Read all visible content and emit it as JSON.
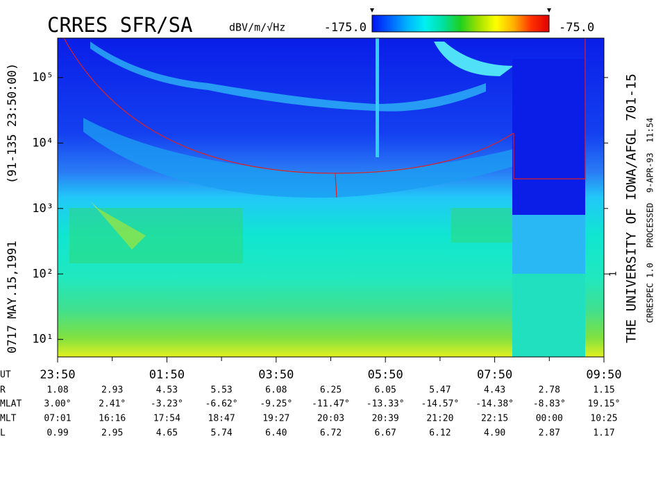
{
  "chart_data": {
    "type": "spectrogram",
    "title": "CRRES SFR/SA",
    "colorbar": {
      "unit": "dBV/m/√Hz",
      "zlim": [
        -175,
        -75
      ],
      "zticks": [
        {
          "value": -175,
          "label": "-175.0"
        },
        {
          "value": -75,
          "label": "-75.0"
        }
      ],
      "colorscale": [
        "#0014f0",
        "#0060ff",
        "#00b4ff",
        "#00f0f0",
        "#00e0a0",
        "#20d020",
        "#a0e000",
        "#ffff00",
        "#ffb000",
        "#ff3000",
        "#e00000"
      ]
    },
    "ylog": true,
    "ylim": [
      5.4,
      400000
    ],
    "yticks": [
      {
        "value": 10,
        "label": "10¹"
      },
      {
        "value": 100,
        "label": "10²"
      },
      {
        "value": 1000,
        "label": "10³"
      },
      {
        "value": 10000,
        "label": "10⁴"
      },
      {
        "value": 100000,
        "label": "10⁵"
      }
    ],
    "y2lim": [
      0.054,
      4000
    ],
    "y2ticks": [
      1
    ],
    "y2_minor_ticks": [
      10,
      100,
      1000
    ],
    "xlim": [
      0,
      10
    ],
    "xticks": [
      {
        "value": 0,
        "label": "23:50"
      },
      {
        "value": 2,
        "label": "01:50"
      },
      {
        "value": 4,
        "label": "03:50"
      },
      {
        "value": 6,
        "label": "05:50"
      },
      {
        "value": 8,
        "label": "07:50"
      },
      {
        "value": 10,
        "label": "09:50"
      }
    ],
    "x_minor_ticks": [
      1,
      3,
      5,
      7,
      9
    ],
    "left_text": [
      "0717",
      "MAY.15,1991",
      "(91-135 23:50:00)"
    ],
    "right_text": [
      "THE UNIVERSITY OF IOWA/AFGL 701-15",
      "CRRESPEC 1.0   PROCESSED  9-APR-93  11:54"
    ],
    "ephemeris": {
      "rows": [
        {
          "label": "UT",
          "values": []
        },
        {
          "label": "R",
          "values": [
            "1.08",
            "2.93",
            "4.53",
            "5.53",
            "6.08",
            "6.25",
            "6.05",
            "5.47",
            "4.43",
            "2.78",
            "1.15"
          ]
        },
        {
          "label": "MLAT",
          "values": [
            "3.00°",
            "2.41°",
            "-3.23°",
            "-6.62°",
            "-9.25°",
            "-11.47°",
            "-13.33°",
            "-14.57°",
            "-14.38°",
            "-8.83°",
            "19.15°"
          ]
        },
        {
          "label": "MLT",
          "values": [
            "07:01",
            "16:16",
            "17:54",
            "18:47",
            "19:27",
            "20:03",
            "20:39",
            "21:20",
            "22:15",
            "00:00",
            "10:25"
          ]
        },
        {
          "label": "L",
          "values": [
            "0.99",
            "2.95",
            "4.65",
            "5.74",
            "6.40",
            "6.72",
            "6.67",
            "6.12",
            "4.90",
            "2.87",
            "1.17"
          ]
        }
      ]
    }
  }
}
